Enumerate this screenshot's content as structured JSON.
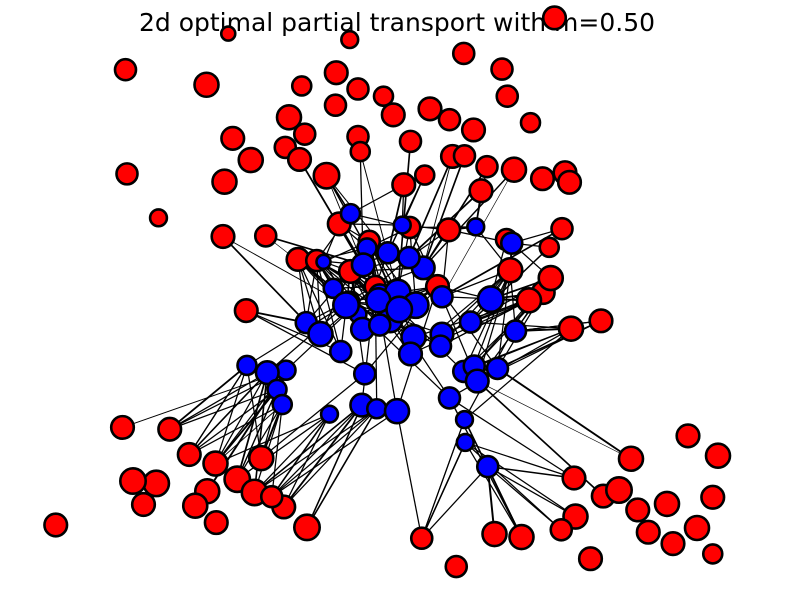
{
  "chart_data": {
    "type": "scatter",
    "title": "2d optimal partial transport with m=0.50",
    "m": 0.5,
    "axes_visible": false,
    "grid": false,
    "colors": {
      "source": "#0000ff",
      "target": "#ff0000",
      "edge": "#000000",
      "marker_edge": "#000000"
    },
    "xlim": [
      -5,
      5
    ],
    "ylim": [
      -4.5,
      4.5
    ],
    "source": {
      "color": "blue",
      "points": [
        [
          -0.62,
          1.65,
          0.3
        ],
        [
          0.07,
          1.46,
          0.2
        ],
        [
          -0.4,
          1.08,
          0.3
        ],
        [
          -0.12,
          1.0,
          0.4
        ],
        [
          -0.45,
          0.8,
          0.5
        ],
        [
          -0.98,
          0.85,
          0.1
        ],
        [
          -0.85,
          0.41,
          0.3
        ],
        [
          -0.23,
          0.3,
          0.4
        ],
        [
          0.01,
          0.34,
          0.7
        ],
        [
          0.35,
          0.75,
          0.5
        ],
        [
          0.6,
          0.27,
          0.4
        ],
        [
          -0.09,
          -0.12,
          0.6
        ],
        [
          -0.52,
          -0.02,
          0.2
        ],
        [
          -0.68,
          0.13,
          0.7
        ],
        [
          -0.25,
          0.21,
          0.6
        ],
        [
          -1.21,
          -0.16,
          0.4
        ],
        [
          -1.02,
          -0.35,
          0.6
        ],
        [
          -0.46,
          -0.27,
          0.5
        ],
        [
          -0.23,
          -0.2,
          0.4
        ],
        [
          0.22,
          -0.4,
          0.6
        ],
        [
          0.6,
          -0.35,
          0.5
        ],
        [
          0.98,
          -0.15,
          0.4
        ],
        [
          1.25,
          0.23,
          0.7
        ],
        [
          1.58,
          -0.3,
          0.4
        ],
        [
          0.25,
          0.13,
          0.7
        ],
        [
          -0.47,
          -1.53,
          0.5
        ],
        [
          -0.75,
          -0.64,
          0.4
        ],
        [
          -0.43,
          -1.01,
          0.4
        ],
        [
          0.18,
          -0.68,
          0.5
        ],
        [
          0.58,
          -0.55,
          0.4
        ],
        [
          0.89,
          -0.97,
          0.4
        ],
        [
          1.03,
          -0.88,
          0.4
        ],
        [
          -1.48,
          -0.95,
          0.3
        ],
        [
          -1.73,
          -0.99,
          0.5
        ],
        [
          -2.0,
          -0.87,
          0.3
        ],
        [
          -1.6,
          -1.27,
          0.3
        ],
        [
          -0.27,
          -1.59,
          0.3
        ],
        [
          0.0,
          -1.63,
          0.6
        ],
        [
          0.7,
          -1.41,
          0.4
        ],
        [
          1.07,
          -1.13,
          0.5
        ],
        [
          1.34,
          -0.92,
          0.4
        ],
        [
          0.9,
          -1.77,
          0.2
        ],
        [
          0.91,
          -2.15,
          0.2
        ],
        [
          1.21,
          -2.55,
          0.4
        ],
        [
          -0.9,
          -1.68,
          0.2
        ],
        [
          -1.53,
          -1.52,
          0.3
        ],
        [
          0.16,
          0.92,
          0.4
        ],
        [
          1.05,
          1.43,
          0.2
        ],
        [
          1.53,
          1.16,
          0.4
        ],
        [
          0.03,
          0.06,
          0.7
        ]
      ]
    },
    "target": {
      "color": "red",
      "points": [
        [
          -2.25,
          4.64,
          0.1
        ],
        [
          -0.63,
          4.54,
          0.2
        ],
        [
          -3.62,
          4.04,
          0.4
        ],
        [
          -2.54,
          3.79,
          0.6
        ],
        [
          -1.27,
          3.77,
          0.3
        ],
        [
          -0.81,
          3.99,
          0.5
        ],
        [
          -0.18,
          3.6,
          0.3
        ],
        [
          0.89,
          4.31,
          0.4
        ],
        [
          1.4,
          4.05,
          0.4
        ],
        [
          1.47,
          3.6,
          0.4
        ],
        [
          2.1,
          4.9,
          0.5
        ],
        [
          -1.44,
          3.25,
          0.6
        ],
        [
          -0.82,
          3.45,
          0.4
        ],
        [
          -0.52,
          3.72,
          0.4
        ],
        [
          -0.05,
          3.29,
          0.5
        ],
        [
          0.44,
          3.39,
          0.5
        ],
        [
          0.7,
          3.21,
          0.4
        ],
        [
          1.02,
          3.04,
          0.5
        ],
        [
          1.78,
          3.16,
          0.3
        ],
        [
          -2.19,
          2.9,
          0.5
        ],
        [
          -1.49,
          2.75,
          0.4
        ],
        [
          -1.23,
          2.97,
          0.4
        ],
        [
          -0.52,
          2.93,
          0.4
        ],
        [
          -0.49,
          2.68,
          0.3
        ],
        [
          0.18,
          2.85,
          0.4
        ],
        [
          0.74,
          2.6,
          0.5
        ],
        [
          1.2,
          2.43,
          0.4
        ],
        [
          1.56,
          2.38,
          0.6
        ],
        [
          1.94,
          2.23,
          0.5
        ],
        [
          2.24,
          2.33,
          0.5
        ],
        [
          -3.6,
          2.31,
          0.4
        ],
        [
          -2.3,
          2.18,
          0.6
        ],
        [
          -1.95,
          2.54,
          0.6
        ],
        [
          -1.3,
          2.55,
          0.5
        ],
        [
          -0.94,
          2.28,
          0.7
        ],
        [
          0.09,
          2.13,
          0.5
        ],
        [
          0.37,
          2.29,
          0.3
        ],
        [
          0.9,
          2.61,
          0.4
        ],
        [
          1.12,
          2.03,
          0.5
        ],
        [
          2.3,
          2.17,
          0.5
        ],
        [
          -3.18,
          1.58,
          0.2
        ],
        [
          -2.32,
          1.27,
          0.5
        ],
        [
          -1.75,
          1.28,
          0.4
        ],
        [
          -0.77,
          1.48,
          0.5
        ],
        [
          -0.37,
          1.19,
          0.4
        ],
        [
          0.17,
          1.42,
          0.4
        ],
        [
          0.69,
          1.38,
          0.5
        ],
        [
          1.46,
          1.22,
          0.4
        ],
        [
          2.03,
          1.09,
          0.3
        ],
        [
          2.2,
          1.4,
          0.4
        ],
        [
          -1.32,
          0.89,
          0.5
        ],
        [
          -1.07,
          0.87,
          0.4
        ],
        [
          -0.62,
          0.69,
          0.5
        ],
        [
          -0.29,
          0.44,
          0.4
        ],
        [
          0.54,
          0.44,
          0.5
        ],
        [
          1.51,
          0.71,
          0.6
        ],
        [
          1.95,
          0.34,
          0.5
        ],
        [
          2.05,
          0.58,
          0.6
        ],
        [
          -2.01,
          0.04,
          0.5
        ],
        [
          -0.64,
          0.18,
          0.4
        ],
        [
          1.76,
          0.21,
          0.6
        ],
        [
          2.32,
          -0.26,
          0.6
        ],
        [
          2.72,
          -0.13,
          0.5
        ],
        [
          -4.55,
          -3.52,
          0.5
        ],
        [
          -3.66,
          -1.9,
          0.5
        ],
        [
          -3.03,
          -1.93,
          0.5
        ],
        [
          -2.77,
          -2.35,
          0.5
        ],
        [
          -3.21,
          -2.83,
          0.7
        ],
        [
          -2.42,
          -2.5,
          0.6
        ],
        [
          -3.52,
          -2.79,
          0.7
        ],
        [
          -2.13,
          -2.76,
          0.7
        ],
        [
          -1.81,
          -2.41,
          0.6
        ],
        [
          -1.9,
          -2.98,
          0.7
        ],
        [
          -1.51,
          -3.22,
          0.5
        ],
        [
          -2.53,
          -2.96,
          0.6
        ],
        [
          -2.69,
          -3.2,
          0.6
        ],
        [
          -2.41,
          -3.48,
          0.5
        ],
        [
          -1.2,
          -3.56,
          0.7
        ],
        [
          -3.38,
          -3.18,
          0.5
        ],
        [
          -1.67,
          -3.05,
          0.4
        ],
        [
          2.36,
          -2.74,
          0.5
        ],
        [
          2.75,
          -3.04,
          0.5
        ],
        [
          2.96,
          -2.94,
          0.7
        ],
        [
          3.21,
          -3.27,
          0.5
        ],
        [
          2.38,
          -3.38,
          0.6
        ],
        [
          3.6,
          -3.17,
          0.6
        ],
        [
          3.35,
          -3.64,
          0.5
        ],
        [
          2.19,
          -3.6,
          0.4
        ],
        [
          4.0,
          -3.57,
          0.6
        ],
        [
          4.21,
          -3.06,
          0.5
        ],
        [
          2.58,
          -4.08,
          0.5
        ],
        [
          3.68,
          -3.83,
          0.5
        ],
        [
          3.12,
          -2.42,
          0.6
        ],
        [
          4.28,
          -2.37,
          0.6
        ],
        [
          3.88,
          -2.04,
          0.5
        ],
        [
          4.21,
          -4.0,
          0.3
        ],
        [
          1.66,
          -3.72,
          0.6
        ],
        [
          0.33,
          -3.74,
          0.4
        ],
        [
          0.79,
          -4.21,
          0.4
        ],
        [
          1.3,
          -3.67,
          0.6
        ]
      ]
    }
  }
}
